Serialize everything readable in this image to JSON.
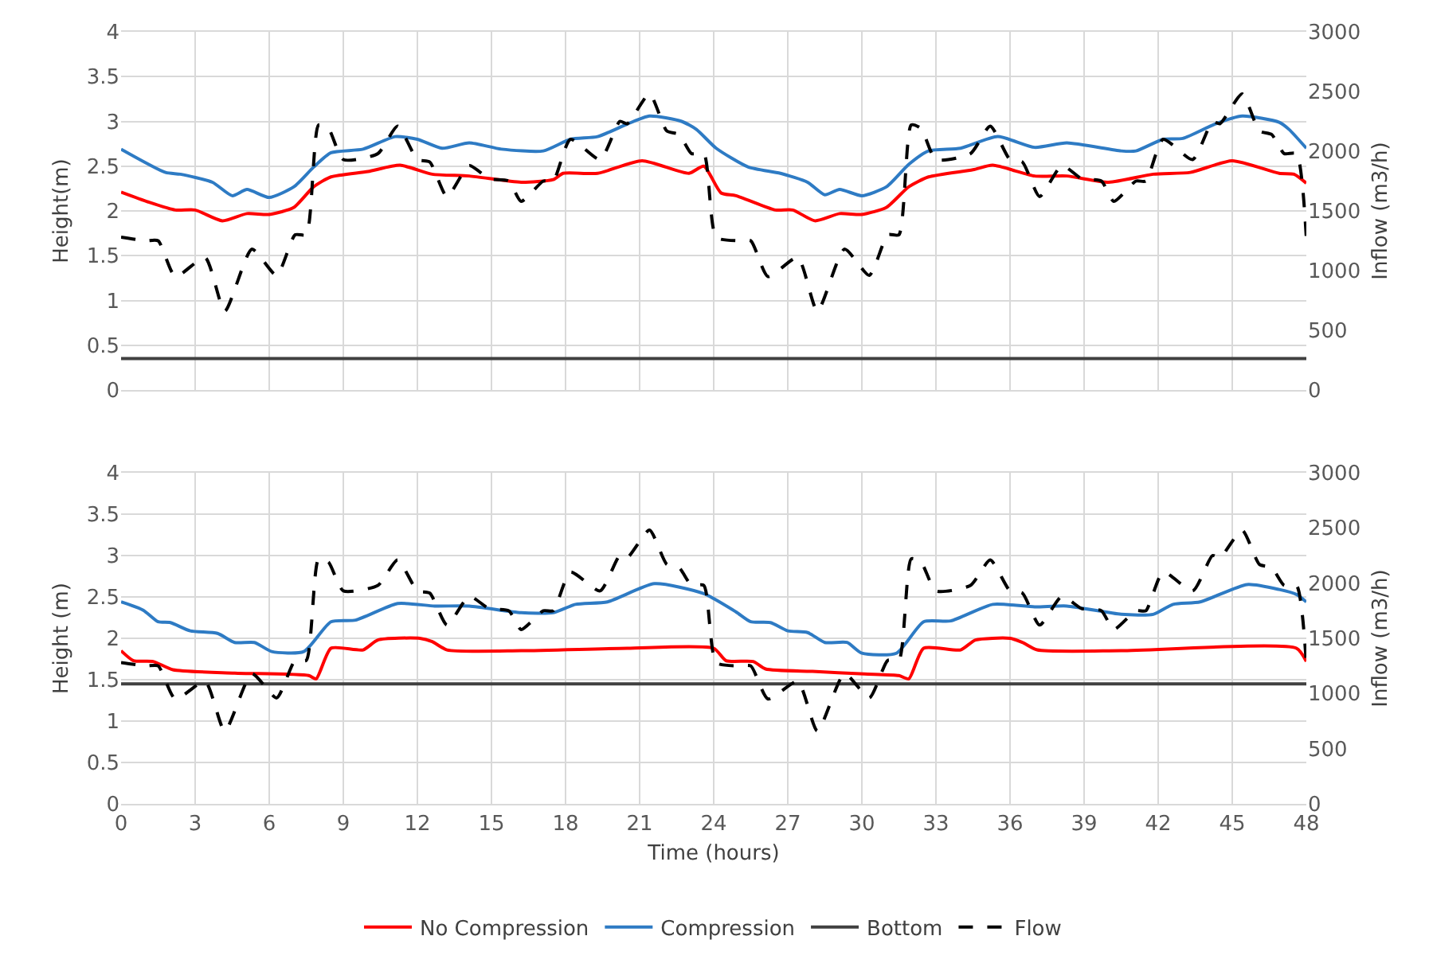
{
  "chart_data": [
    {
      "type": "line",
      "ylabel": "Height(m)",
      "y2label": "Inflow (m3/h)",
      "xlim": [
        0,
        48
      ],
      "xticks": [
        0,
        3,
        6,
        9,
        12,
        15,
        18,
        21,
        24,
        27,
        30,
        33,
        36,
        39,
        42,
        45,
        48
      ],
      "ylim": [
        0,
        4
      ],
      "yticks": [
        0,
        0.5,
        1,
        1.5,
        2,
        2.5,
        3,
        3.5,
        4
      ],
      "y2lim": [
        0,
        3000
      ],
      "y2ticks": [
        0,
        500,
        1000,
        1500,
        2000,
        2500,
        3000
      ],
      "grid": true,
      "legend": false,
      "tick_labels": "y",
      "marker": "none",
      "series": [
        {
          "color": "#ff0000",
          "line_style": "solid",
          "x": [
            0,
            1.1,
            2.2,
            3,
            4.1,
            5.1,
            6,
            7,
            7.8,
            8.5,
            10,
            11.3,
            12.6,
            14.1,
            16.2,
            17.5,
            17.9,
            19.3,
            21.1,
            23,
            23.6,
            24.3,
            24.9,
            26.5,
            27.2,
            28.1,
            29.1,
            30,
            31,
            31.9,
            32.7,
            34.5,
            35.3,
            37,
            38.3,
            40,
            41.8,
            43.3,
            45,
            46.9,
            47.5,
            48
          ],
          "values": [
            2.21,
            2.1,
            2.01,
            2.01,
            1.89,
            1.97,
            1.96,
            2.04,
            2.27,
            2.38,
            2.44,
            2.51,
            2.41,
            2.39,
            2.32,
            2.35,
            2.42,
            2.42,
            2.56,
            2.42,
            2.5,
            2.2,
            2.17,
            2.01,
            2.01,
            1.89,
            1.97,
            1.96,
            2.04,
            2.27,
            2.38,
            2.46,
            2.51,
            2.39,
            2.39,
            2.32,
            2.41,
            2.43,
            2.56,
            2.42,
            2.41,
            2.31
          ]
        },
        {
          "color": "#2e7bc4",
          "line_style": "solid",
          "x": [
            0,
            1.8,
            2.4,
            3.7,
            4.5,
            5.1,
            6,
            7,
            7.8,
            8.5,
            9.8,
            11.1,
            12,
            13,
            14.1,
            15.4,
            17.1,
            18.2,
            19.3,
            20.5,
            21.4,
            22.7,
            23.3,
            24.1,
            25.4,
            26.7,
            27.8,
            28.5,
            29.1,
            30,
            31,
            31.9,
            32.7,
            34,
            35.5,
            37,
            38.3,
            40.5,
            41.1,
            42.2,
            43,
            44.3,
            45.4,
            46.9,
            47.3,
            48
          ],
          "values": [
            2.69,
            2.43,
            2.41,
            2.32,
            2.17,
            2.24,
            2.15,
            2.27,
            2.49,
            2.65,
            2.69,
            2.83,
            2.8,
            2.7,
            2.76,
            2.69,
            2.67,
            2.8,
            2.83,
            2.97,
            3.06,
            3.0,
            2.91,
            2.7,
            2.49,
            2.42,
            2.32,
            2.18,
            2.24,
            2.17,
            2.27,
            2.52,
            2.67,
            2.7,
            2.83,
            2.71,
            2.76,
            2.67,
            2.67,
            2.8,
            2.81,
            2.97,
            3.06,
            2.99,
            2.91,
            2.7
          ]
        },
        {
          "color": "#404040",
          "line_style": "solid",
          "x": [
            0,
            48
          ],
          "values": [
            0.35,
            0.35
          ]
        },
        {
          "color": "#000000",
          "line_style": "dashed",
          "axis": "y2",
          "x": [
            0,
            1,
            1.5,
            2.2,
            3.4,
            4.2,
            5.3,
            6.3,
            7.05,
            7.5,
            8,
            8.4,
            9,
            10.4,
            11.2,
            12,
            12.5,
            13.2,
            14.1,
            14.9,
            15.7,
            16.2,
            17.1,
            17.5,
            18.2,
            19.4,
            20.2,
            20.5,
            21.4,
            22.1,
            22.6,
            23.1,
            23.6,
            24.1,
            25,
            25.5,
            26.2,
            27.4,
            28.2,
            29.3,
            30.3,
            31.05,
            31.5,
            32,
            32.4,
            33,
            34.4,
            35.2,
            36,
            36.5,
            37.2,
            38.1,
            38.9,
            39.7,
            40.2,
            41.1,
            41.5,
            42.2,
            43.4,
            44.2,
            44.5,
            45.4,
            46.1,
            46.6,
            47.1,
            47.6,
            48
          ],
          "values": [
            1280,
            1250,
            1250,
            950,
            1110,
            660,
            1180,
            960,
            1300,
            1300,
            2220,
            2190,
            1930,
            1980,
            2210,
            1930,
            1910,
            1620,
            1880,
            1770,
            1750,
            1580,
            1750,
            1750,
            2100,
            1930,
            2250,
            2230,
            2480,
            2170,
            2140,
            1980,
            1980,
            1280,
            1250,
            1250,
            950,
            1110,
            660,
            1180,
            960,
            1300,
            1300,
            2220,
            2190,
            1930,
            1980,
            2210,
            1930,
            1910,
            1620,
            1880,
            1770,
            1750,
            1580,
            1750,
            1750,
            2100,
            1930,
            2250,
            2230,
            2480,
            2170,
            2140,
            1980,
            1980,
            1270
          ]
        }
      ]
    },
    {
      "type": "line",
      "xlabel": "Time (hours)",
      "ylabel": "Height (m)",
      "y2label": "Inflow (m3/h)",
      "xlim": [
        0,
        48
      ],
      "xticks": [
        0,
        3,
        6,
        9,
        12,
        15,
        18,
        21,
        24,
        27,
        30,
        33,
        36,
        39,
        42,
        45,
        48
      ],
      "ylim": [
        0,
        4
      ],
      "yticks": [
        0,
        0.5,
        1,
        1.5,
        2,
        2.5,
        3,
        3.5,
        4
      ],
      "y2lim": [
        0,
        3000
      ],
      "y2ticks": [
        0,
        500,
        1000,
        1500,
        2000,
        2500,
        3000
      ],
      "grid": true,
      "legend": "bottom",
      "marker": "none",
      "series": [
        {
          "name": "No Compression",
          "color": "#ff0000",
          "line_style": "solid",
          "x": [
            0,
            0.5,
            1.3,
            2.1,
            4.6,
            7.6,
            7.9,
            8.5,
            9.8,
            10.4,
            12.1,
            12.6,
            13.2,
            16.2,
            20.5,
            24,
            24.5,
            25.6,
            26.1,
            28,
            30.1,
            31.5,
            31.9,
            32.5,
            34,
            34.6,
            36,
            36.5,
            37.1,
            40.5,
            47.6,
            48
          ],
          "values": [
            1.85,
            1.73,
            1.72,
            1.62,
            1.58,
            1.55,
            1.51,
            1.88,
            1.86,
            1.98,
            2.0,
            1.96,
            1.86,
            1.85,
            1.88,
            1.88,
            1.73,
            1.72,
            1.63,
            1.6,
            1.57,
            1.55,
            1.51,
            1.88,
            1.86,
            1.98,
            2.0,
            1.95,
            1.86,
            1.85,
            1.88,
            1.72
          ]
        },
        {
          "name": "Compression",
          "color": "#2e7bc4",
          "line_style": "solid",
          "x": [
            0,
            0.9,
            1.5,
            2,
            2.8,
            3.9,
            4.6,
            5.4,
            6.1,
            7.4,
            8.5,
            9.5,
            11.2,
            12.7,
            14.1,
            16.2,
            17.5,
            18.4,
            19.7,
            21.6,
            23.6,
            24.9,
            25.5,
            26.3,
            27,
            27.8,
            28.5,
            29.4,
            30,
            31.4,
            32.5,
            33.6,
            35.3,
            37,
            38.3,
            40.5,
            41.8,
            42.6,
            43.7,
            45.6,
            46.9,
            47.6,
            48
          ],
          "values": [
            2.44,
            2.34,
            2.2,
            2.19,
            2.09,
            2.06,
            1.95,
            1.95,
            1.84,
            1.84,
            2.2,
            2.22,
            2.42,
            2.39,
            2.39,
            2.31,
            2.31,
            2.41,
            2.44,
            2.66,
            2.54,
            2.32,
            2.2,
            2.19,
            2.09,
            2.07,
            1.95,
            1.95,
            1.82,
            1.82,
            2.2,
            2.21,
            2.41,
            2.38,
            2.39,
            2.29,
            2.29,
            2.41,
            2.44,
            2.65,
            2.59,
            2.53,
            2.44
          ]
        },
        {
          "name": "Bottom",
          "color": "#404040",
          "line_style": "solid",
          "x": [
            0,
            48
          ],
          "values": [
            1.45,
            1.45
          ]
        },
        {
          "name": "Flow",
          "color": "#000000",
          "line_style": "dashed",
          "axis": "y2",
          "x": [
            0,
            1,
            1.5,
            2.2,
            3.4,
            4.2,
            5.3,
            6.3,
            7.05,
            7.5,
            8,
            8.4,
            9,
            10.4,
            11.2,
            12,
            12.5,
            13.2,
            14.1,
            14.9,
            15.7,
            16.2,
            17.1,
            17.5,
            18.2,
            19.4,
            20.2,
            20.5,
            21.4,
            22.1,
            22.6,
            23.1,
            23.6,
            24.1,
            25,
            25.5,
            26.2,
            27.4,
            28.2,
            29.3,
            30.3,
            31.05,
            31.5,
            32,
            32.4,
            33,
            34.4,
            35.2,
            36,
            36.5,
            37.2,
            38.1,
            38.9,
            39.7,
            40.2,
            41.1,
            41.5,
            42.2,
            43.4,
            44.2,
            44.5,
            45.4,
            46.1,
            46.6,
            47.1,
            47.6,
            48
          ],
          "values": [
            1280,
            1250,
            1250,
            950,
            1110,
            660,
            1180,
            960,
            1300,
            1300,
            2220,
            2190,
            1930,
            1980,
            2210,
            1930,
            1910,
            1620,
            1880,
            1770,
            1750,
            1580,
            1750,
            1750,
            2100,
            1930,
            2250,
            2230,
            2480,
            2170,
            2140,
            1980,
            1980,
            1280,
            1250,
            1250,
            950,
            1110,
            660,
            1180,
            960,
            1300,
            1300,
            2220,
            2190,
            1930,
            1980,
            2210,
            1930,
            1910,
            1620,
            1880,
            1770,
            1750,
            1580,
            1750,
            1750,
            2100,
            1930,
            2250,
            2230,
            2480,
            2170,
            2140,
            1980,
            1980,
            1270
          ]
        }
      ]
    }
  ]
}
